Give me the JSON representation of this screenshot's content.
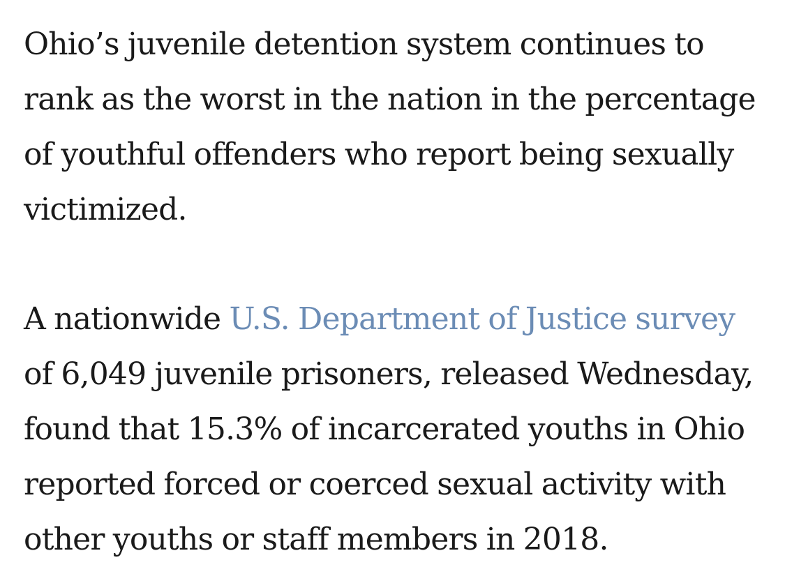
{
  "article": {
    "paragraph1": {
      "lines": [
        "Ohio’s juvenile detention system continues to",
        "rank as the worst in the nation in the percentage",
        "of youthful offenders who report being sexually",
        "victimized."
      ]
    },
    "paragraph2": {
      "line1_prefix": "A nationwide ",
      "link_text": "U.S. Department of Justice survey",
      "lines": [
        "of 6,049 juvenile prisoners, released Wednesday,",
        "found that 15.3% of incarcerated youths in Ohio",
        "reported forced or coerced sexual activity with",
        "other youths or staff members in 2018."
      ]
    }
  },
  "colors": {
    "text": "#1a1a1a",
    "link": "#6b8cb5",
    "background": "#ffffff"
  }
}
